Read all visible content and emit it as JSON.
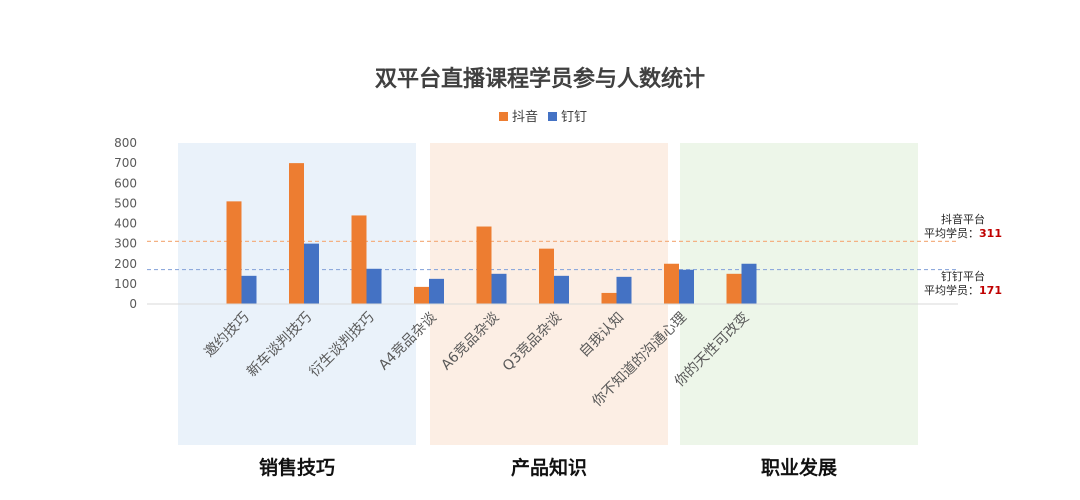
{
  "chart_data": {
    "type": "bar",
    "title": "双平台直播课程学员参与人数统计",
    "categories": [
      "邀约技巧",
      "新车谈判技巧",
      "衍生谈判技巧",
      "A4竞品杂谈",
      "A6竞品杂谈",
      "Q3竞品杂谈",
      "自我认知",
      "你不知道的沟通心理",
      "你的天性可改变"
    ],
    "series": [
      {
        "name": "抖音",
        "color": "#ED7D31",
        "values": [
          510,
          700,
          440,
          85,
          385,
          275,
          55,
          200,
          150
        ]
      },
      {
        "name": "钉钉",
        "color": "#4472C4",
        "values": [
          140,
          300,
          175,
          125,
          150,
          140,
          135,
          170,
          200
        ]
      }
    ],
    "ylim": [
      0,
      800
    ],
    "yticks": [
      "0",
      "100",
      "200",
      "300",
      "400",
      "500",
      "600",
      "700",
      "800"
    ],
    "legend_position": "top-center",
    "groups": [
      {
        "label": "销售技巧",
        "color": "#EAF2FA",
        "categories": [
          0,
          1,
          2
        ]
      },
      {
        "label": "产品知识",
        "color": "#FCEEE4",
        "categories": [
          3,
          4,
          5
        ]
      },
      {
        "label": "职业发展",
        "color": "#EDF6E9",
        "categories": [
          6,
          7,
          8
        ]
      }
    ],
    "averages": [
      {
        "line1": "抖音平台",
        "prefix": "平均学员：",
        "value": 311,
        "color": "#F4B183"
      },
      {
        "line1": "钉钉平台",
        "prefix": "平均学员：",
        "value": 171,
        "color": "#8FAADC"
      }
    ]
  }
}
